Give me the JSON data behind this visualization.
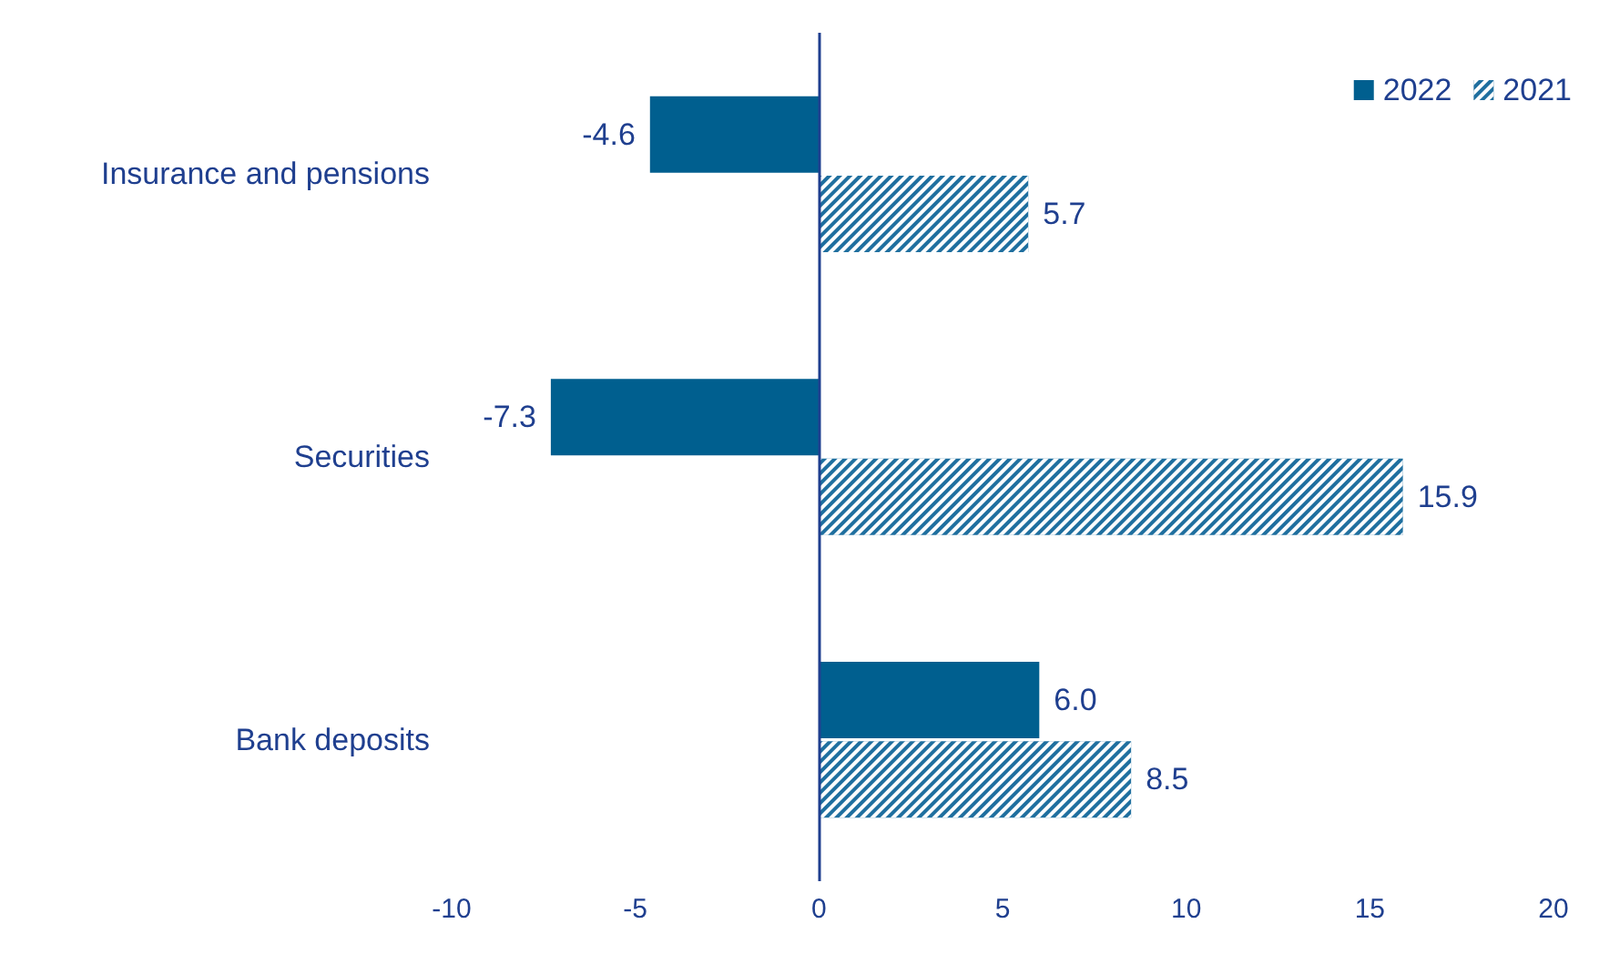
{
  "chart_data": {
    "type": "bar",
    "orientation": "horizontal",
    "categories": [
      "Insurance and pensions",
      "Securities",
      "Bank deposits"
    ],
    "series": [
      {
        "name": "2022",
        "color": "#005f8f",
        "values": [
          -4.6,
          -7.3,
          6.0
        ],
        "value_labels": [
          "-4.6",
          "-7.3",
          "6.0"
        ]
      },
      {
        "name": "2021",
        "color": "#1f6f9f",
        "values": [
          5.7,
          15.9,
          8.5
        ],
        "value_labels": [
          "5.7",
          "15.9",
          "8.5"
        ]
      }
    ],
    "xlim": [
      -10,
      20
    ],
    "xticks": [
      -10,
      -5,
      0,
      5,
      10,
      15,
      20
    ],
    "ref_lines": [
      {
        "axis": "x",
        "value": 0,
        "color": "#1f3f8f"
      }
    ],
    "grid": false,
    "legend": "top right"
  }
}
